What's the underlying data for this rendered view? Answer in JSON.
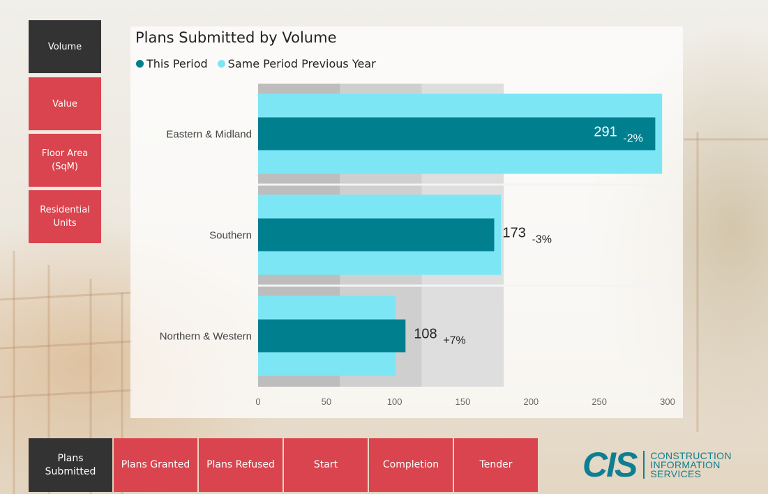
{
  "side_menu": {
    "items": [
      {
        "label": "Volume",
        "active": true
      },
      {
        "label": "Value",
        "active": false
      },
      {
        "label": "Floor Area (SqM)",
        "active": false
      },
      {
        "label": "Residential Units",
        "active": false
      }
    ]
  },
  "bottom_tabs": {
    "items": [
      {
        "label": "Plans Submitted",
        "active": true
      },
      {
        "label": "Plans Granted",
        "active": false
      },
      {
        "label": "Plans Refused",
        "active": false
      },
      {
        "label": "Start",
        "active": false
      },
      {
        "label": "Completion",
        "active": false
      },
      {
        "label": "Tender",
        "active": false
      }
    ]
  },
  "logo": {
    "mark": "CIS",
    "line1": "CONSTRUCTION",
    "line2": "INFORMATION",
    "line3": "SERVICES",
    "color": "#0e7e92"
  },
  "colors": {
    "this_period": "#007f8f",
    "previous_year": "#7de6f5",
    "active_button": "#333333",
    "inactive_button": "#d9444e"
  },
  "chart_data": {
    "type": "bar",
    "orientation": "horizontal",
    "title": "Plans Submitted by Volume",
    "categories": [
      "Eastern & Midland",
      "Southern",
      "Northern & Western"
    ],
    "series": [
      {
        "name": "This Period",
        "values": [
          291,
          173,
          108
        ],
        "color": "#007f8f"
      },
      {
        "name": "Same Period Previous Year",
        "values": [
          296,
          178,
          101
        ],
        "color": "#7de6f5"
      }
    ],
    "data_labels": [
      "291",
      "173",
      "108"
    ],
    "change_labels": [
      "-2%",
      "-3%",
      "+7%"
    ],
    "xlim": [
      0,
      300
    ],
    "xticks": [
      0,
      50,
      100,
      150,
      200,
      250,
      300
    ],
    "background_bands": [
      60,
      120,
      180
    ],
    "legend_position": "top-left"
  }
}
